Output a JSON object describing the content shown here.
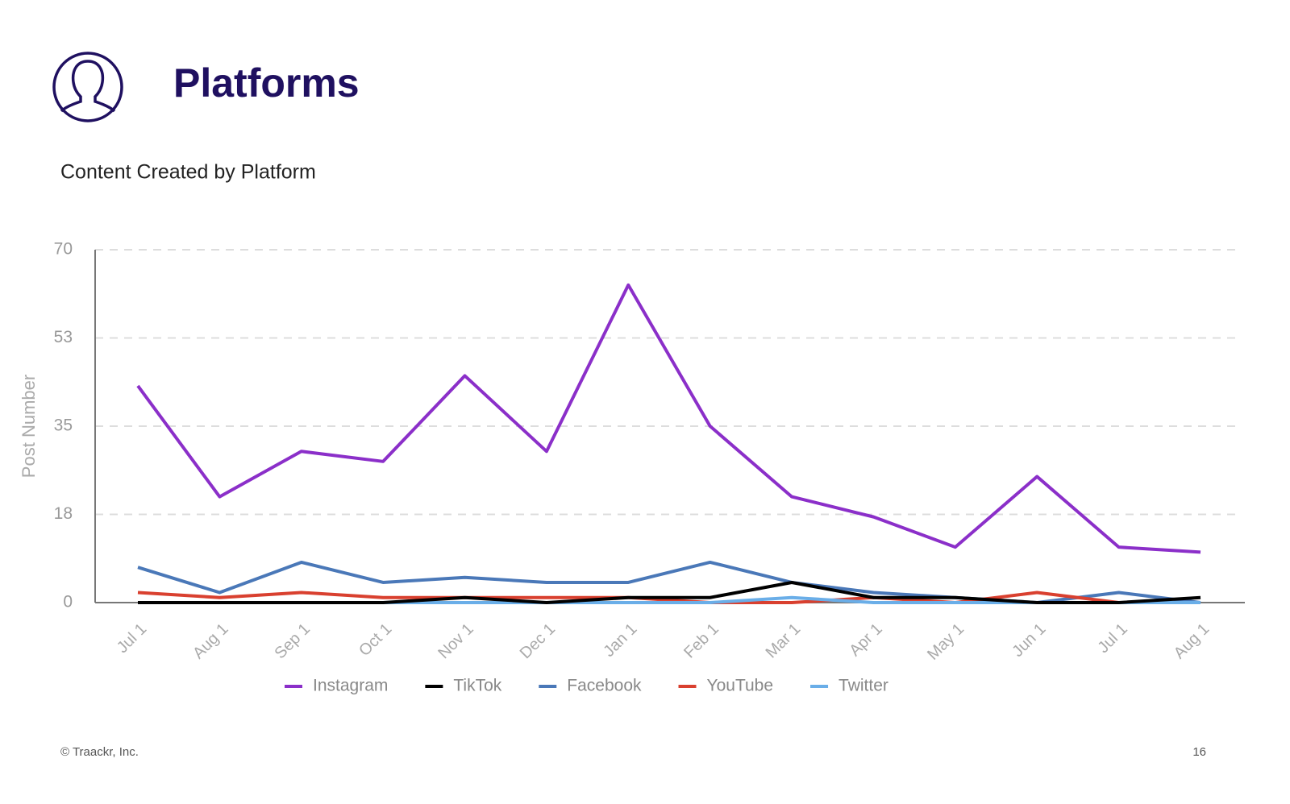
{
  "header": {
    "title": "Platforms",
    "subtitle": "Content Created by Platform"
  },
  "footer": {
    "copyright": "© Traackr, Inc.",
    "page_number": "16"
  },
  "chart_data": {
    "type": "line",
    "y_label": "Post Number",
    "categories": [
      "Jul 1",
      "Aug 1",
      "Sep 1",
      "Oct 1",
      "Nov 1",
      "Dec 1",
      "Jan 1",
      "Feb 1",
      "Mar 1",
      "Apr 1",
      "May 1",
      "Jun 1",
      "Jul 1",
      "Aug 1"
    ],
    "series": [
      {
        "name": "Instagram",
        "color": "#8b2fc9",
        "values": [
          43,
          21,
          30,
          28,
          45,
          30,
          63,
          35,
          21,
          17,
          11,
          25,
          11,
          10
        ]
      },
      {
        "name": "TikTok",
        "color": "#000000",
        "values": [
          0,
          0,
          0,
          0,
          1,
          0,
          1,
          1,
          4,
          1,
          1,
          0,
          0,
          1
        ]
      },
      {
        "name": "Facebook",
        "color": "#4a78b8",
        "values": [
          7,
          2,
          8,
          4,
          5,
          4,
          4,
          8,
          4,
          2,
          1,
          0,
          2,
          0
        ]
      },
      {
        "name": "YouTube",
        "color": "#d9402f",
        "values": [
          2,
          1,
          2,
          1,
          1,
          1,
          1,
          0,
          0,
          1,
          0,
          2,
          0,
          0
        ]
      },
      {
        "name": "Twitter",
        "color": "#6aaee8",
        "values": [
          0,
          0,
          0,
          0,
          0,
          0,
          0,
          0,
          1,
          0,
          0,
          0,
          0,
          0
        ]
      }
    ],
    "ylim": [
      0,
      70
    ],
    "yticks": [
      0,
      {
        "value": 17.5,
        "label": "18"
      },
      35,
      {
        "value": 52.5,
        "label": "53"
      },
      70
    ],
    "grid": true,
    "legend": "bottom"
  }
}
